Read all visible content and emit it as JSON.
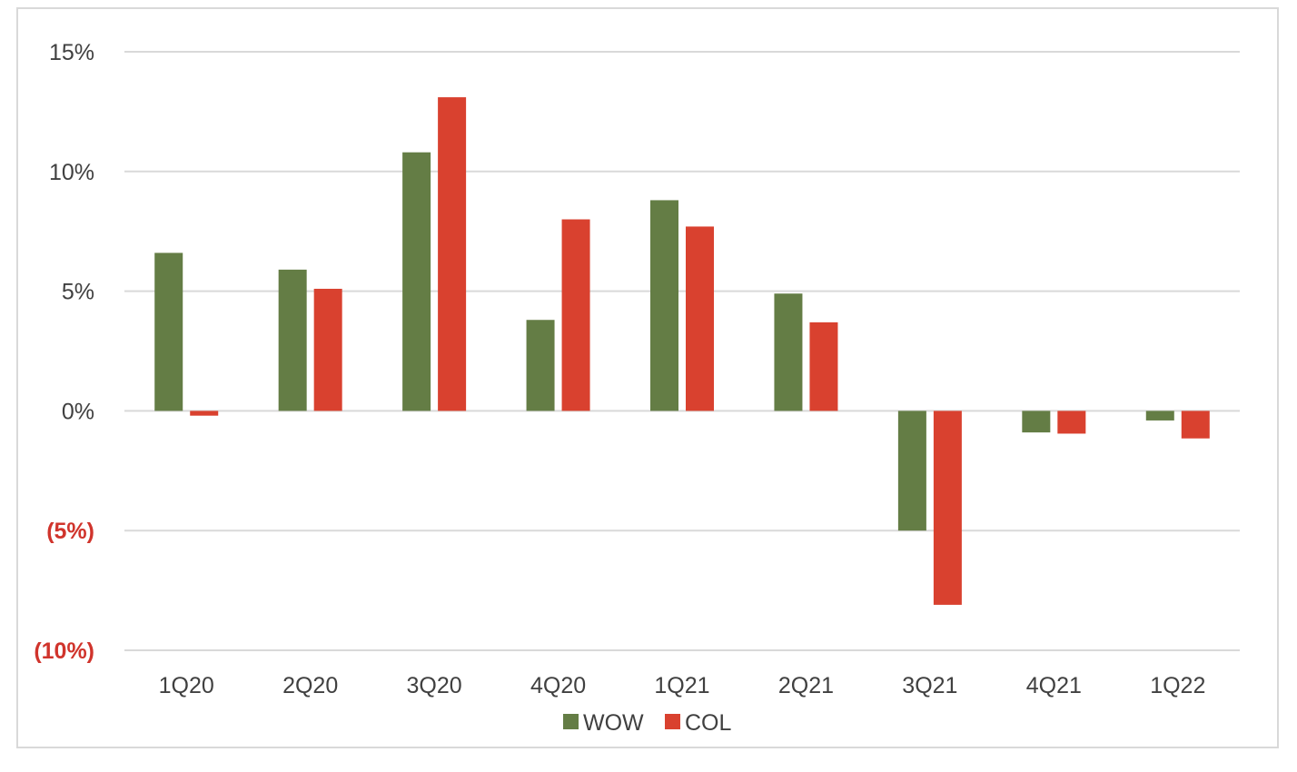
{
  "chart_data": {
    "type": "bar",
    "categories": [
      "1Q20",
      "2Q20",
      "3Q20",
      "4Q20",
      "1Q21",
      "2Q21",
      "3Q21",
      "4Q21",
      "1Q22"
    ],
    "series": [
      {
        "name": "WOW",
        "color": "#647d45",
        "values": [
          6.6,
          5.9,
          10.8,
          3.8,
          8.8,
          4.9,
          -5.0,
          -0.9,
          -0.4
        ]
      },
      {
        "name": "COL",
        "color": "#d9412f",
        "values": [
          -0.2,
          5.1,
          13.1,
          8.0,
          7.7,
          3.7,
          -8.1,
          -0.95,
          -1.15
        ]
      }
    ],
    "ylim": [
      -10,
      15
    ],
    "yticks": [
      {
        "value": 15,
        "label": "15%",
        "negative": false
      },
      {
        "value": 10,
        "label": "10%",
        "negative": false
      },
      {
        "value": 5,
        "label": "5%",
        "negative": false
      },
      {
        "value": 0,
        "label": "0%",
        "negative": false
      },
      {
        "value": -5,
        "label": "(5%)",
        "negative": true
      },
      {
        "value": -10,
        "label": "(10%)",
        "negative": true
      }
    ],
    "grid": true,
    "legend_position": "bottom-center",
    "negative_label_color": "#d0342c",
    "gridline_color": "#d9d9d9"
  }
}
